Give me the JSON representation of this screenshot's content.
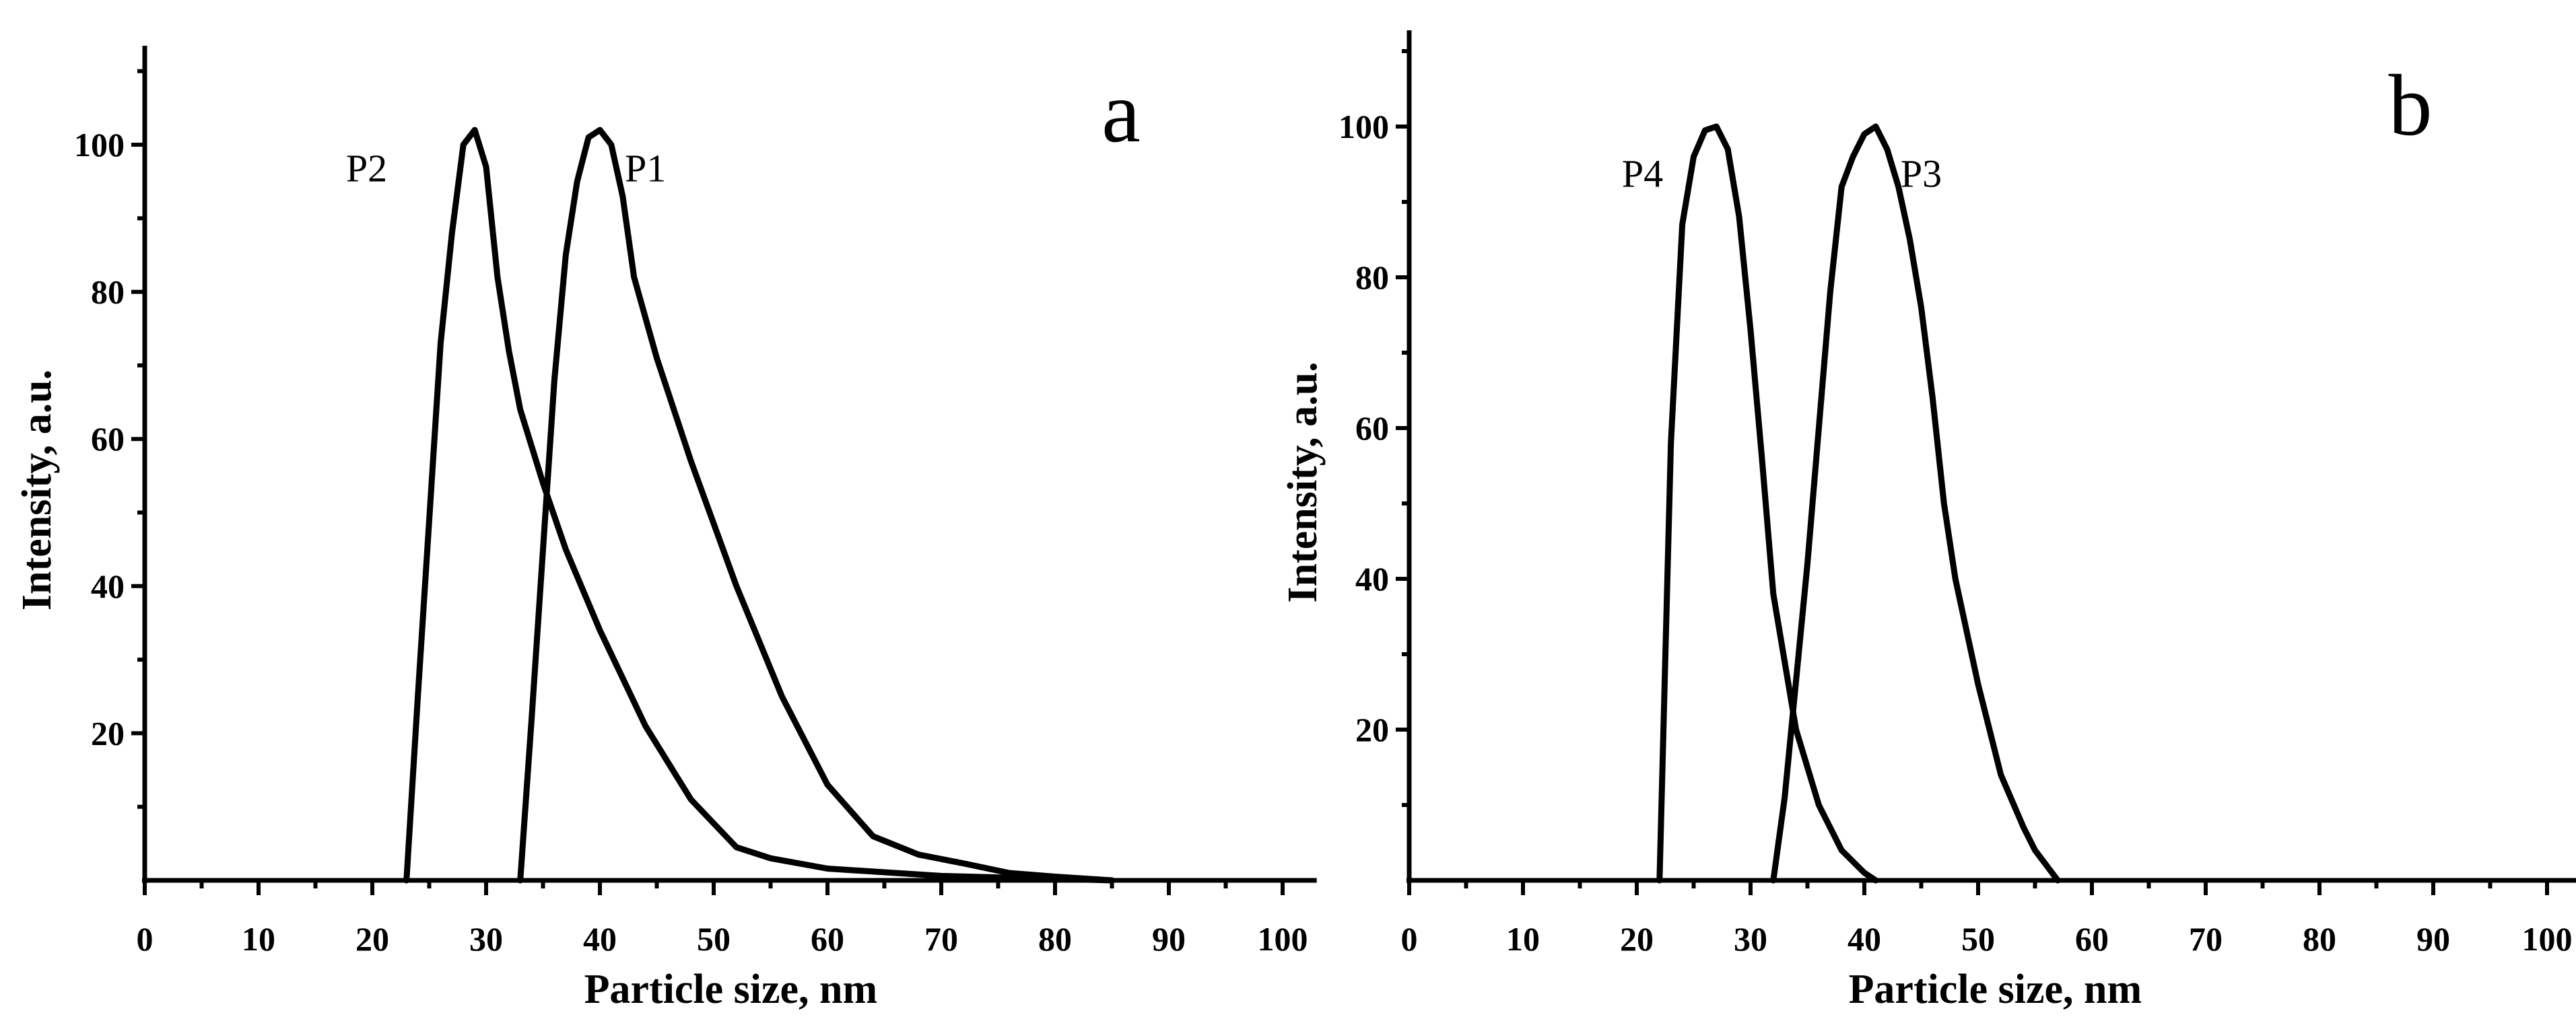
{
  "chart_data": [
    {
      "type": "line",
      "panel_label": "a",
      "xlabel": "Particle size, nm",
      "ylabel": "Intensity, a.u.",
      "xlim": [
        0,
        103
      ],
      "ylim": [
        0,
        114
      ],
      "xticks": [
        0,
        10,
        20,
        30,
        40,
        50,
        60,
        70,
        80,
        90,
        100
      ],
      "yticks": [
        20,
        40,
        60,
        80,
        100
      ],
      "grid": false,
      "legend": "none",
      "series": [
        {
          "name": "P2",
          "label_at": [
            19.5,
            95
          ],
          "x": [
            23,
            24,
            26,
            27,
            28,
            29,
            30,
            31,
            32,
            33,
            35,
            37,
            40,
            44,
            48,
            52,
            55,
            60,
            70,
            80,
            85
          ],
          "y": [
            0,
            25,
            73,
            88,
            100,
            102,
            97,
            82,
            72,
            64,
            54,
            45,
            34,
            21,
            11,
            4.5,
            3,
            1.6,
            0.6,
            0.2,
            0
          ]
        },
        {
          "name": "P1",
          "label_at": [
            44,
            95
          ],
          "x": [
            33,
            34,
            35,
            36,
            37,
            38,
            39,
            40,
            41,
            42,
            43,
            45,
            48,
            52,
            56,
            60,
            64,
            68,
            72,
            76,
            80,
            85
          ],
          "y": [
            0,
            22,
            45,
            68,
            85,
            95,
            101,
            102,
            100,
            93,
            82,
            71,
            57,
            40,
            25,
            13,
            6,
            3.5,
            2.3,
            1,
            0.5,
            0
          ]
        }
      ]
    },
    {
      "type": "line",
      "panel_label": "b",
      "xlabel": "Particle size, nm",
      "ylabel": "Intensity, a.u.",
      "xlim": [
        0,
        103
      ],
      "ylim": [
        0,
        114
      ],
      "xticks": [
        0,
        10,
        20,
        30,
        40,
        50,
        60,
        70,
        80,
        90,
        100
      ],
      "yticks": [
        20,
        40,
        60,
        80,
        100
      ],
      "grid": false,
      "legend": "none",
      "series": [
        {
          "name": "P4",
          "label_at": [
            20.5,
            92
          ],
          "x": [
            22,
            23,
            24,
            25,
            26,
            27,
            28,
            29,
            30,
            31,
            32,
            34,
            36,
            38,
            40,
            41
          ],
          "y": [
            0,
            58,
            87,
            96,
            99.5,
            100,
            97,
            88,
            73,
            56,
            38,
            20,
            10,
            4,
            1,
            0
          ]
        },
        {
          "name": "P3",
          "label_at": [
            45,
            92
          ],
          "x": [
            32,
            33,
            35,
            37,
            38,
            39,
            40,
            41,
            42,
            43,
            44,
            45,
            46,
            47,
            48,
            50,
            52,
            54,
            55,
            57
          ],
          "y": [
            0,
            11,
            42,
            78,
            92,
            96,
            99,
            100,
            97,
            92,
            85,
            76,
            64,
            50,
            40,
            26,
            14,
            7,
            4,
            0
          ]
        }
      ]
    }
  ]
}
